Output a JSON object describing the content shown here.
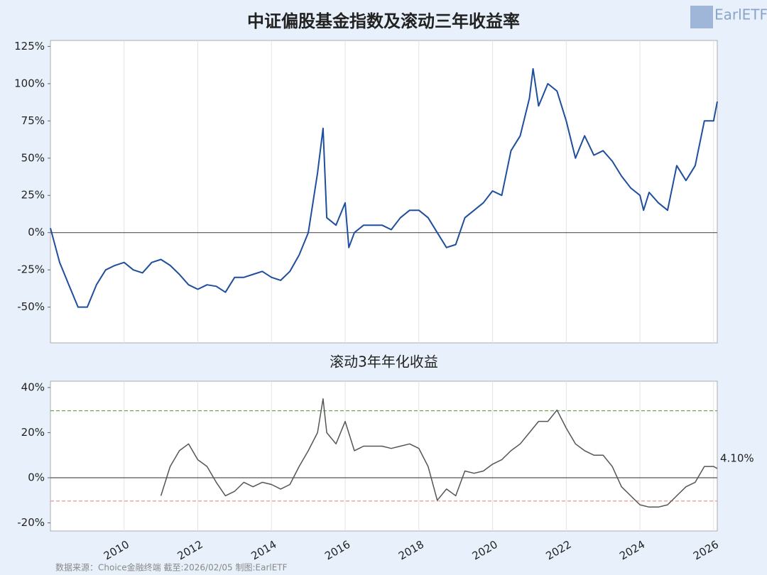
{
  "header": {
    "title": "中证偏股基金指数及滚动三年收益率",
    "logo": "EarlETF"
  },
  "footer": {
    "source": "数据来源：Choice金融终端 截至:2026/02/05 制图:EarlETF"
  },
  "chart_data": [
    {
      "type": "line",
      "xlim": [
        2008,
        2026.1
      ],
      "xticks": [
        2010,
        2012,
        2014,
        2016,
        2018,
        2020,
        2022,
        2024,
        2026
      ],
      "ylim": [
        -74,
        129
      ],
      "yticks": [
        {
          "value": -50,
          "label": "-50%"
        },
        {
          "value": -25,
          "label": "-25%"
        },
        {
          "value": 0,
          "label": "0%"
        },
        {
          "value": 25,
          "label": "25%"
        },
        {
          "value": 50,
          "label": "50%"
        },
        {
          "value": 75,
          "label": "75%"
        },
        {
          "value": 100,
          "label": "100%"
        },
        {
          "value": 125,
          "label": "125%"
        }
      ],
      "x": [
        2008,
        2008.25,
        2008.5,
        2008.75,
        2009,
        2009.25,
        2009.5,
        2009.75,
        2010,
        2010.25,
        2010.5,
        2010.75,
        2011,
        2011.25,
        2011.5,
        2011.75,
        2012,
        2012.25,
        2012.5,
        2012.75,
        2013,
        2013.25,
        2013.5,
        2013.75,
        2014,
        2014.25,
        2014.5,
        2014.75,
        2015,
        2015.25,
        2015.4,
        2015.5,
        2015.75,
        2016,
        2016.1,
        2016.25,
        2016.5,
        2016.75,
        2017,
        2017.25,
        2017.5,
        2017.75,
        2018,
        2018.25,
        2018.5,
        2018.75,
        2019,
        2019.25,
        2019.5,
        2019.75,
        2020,
        2020.25,
        2020.5,
        2020.75,
        2021,
        2021.1,
        2021.25,
        2021.5,
        2021.75,
        2022,
        2022.25,
        2022.5,
        2022.75,
        2023,
        2023.25,
        2023.5,
        2023.75,
        2024,
        2024.1,
        2024.25,
        2024.5,
        2024.75,
        2025,
        2025.25,
        2025.5,
        2025.75,
        2026,
        2026.1
      ],
      "series": [
        {
          "color": "#1f4e9c",
          "values": [
            3,
            -20,
            -35,
            -50,
            -50,
            -35,
            -25,
            -22,
            -20,
            -25,
            -27,
            -20,
            -18,
            -22,
            -28,
            -35,
            -38,
            -35,
            -36,
            -40,
            -30,
            -30,
            -28,
            -26,
            -30,
            -32,
            -26,
            -15,
            0,
            40,
            70,
            10,
            5,
            20,
            -10,
            0,
            5,
            5,
            5,
            2,
            10,
            15,
            15,
            10,
            0,
            -10,
            -8,
            10,
            15,
            20,
            28,
            25,
            55,
            65,
            90,
            110,
            85,
            100,
            95,
            75,
            50,
            65,
            52,
            55,
            48,
            38,
            30,
            25,
            15,
            27,
            20,
            15,
            45,
            35,
            45,
            75,
            75,
            88
          ]
        }
      ]
    },
    {
      "type": "line",
      "title": "滚动3年年化收益",
      "xlim": [
        2008,
        2026.1
      ],
      "xticks": [
        2010,
        2012,
        2014,
        2016,
        2018,
        2020,
        2022,
        2024,
        2026
      ],
      "ylim": [
        -23.6,
        42.8
      ],
      "yticks": [
        {
          "value": -20,
          "label": "-20%"
        },
        {
          "value": 0,
          "label": "0%"
        },
        {
          "value": 20,
          "label": "20%"
        },
        {
          "value": 40,
          "label": "40%"
        }
      ],
      "reference_lines": [
        {
          "value": 29.7,
          "color": "#6aa84f"
        },
        {
          "value": -10.3,
          "color": "#e69a9a"
        }
      ],
      "x": [
        2011,
        2011.25,
        2011.5,
        2011.75,
        2012,
        2012.25,
        2012.5,
        2012.75,
        2013,
        2013.25,
        2013.5,
        2013.75,
        2014,
        2014.25,
        2014.5,
        2014.75,
        2015,
        2015.25,
        2015.4,
        2015.5,
        2015.75,
        2016,
        2016.25,
        2016.5,
        2016.75,
        2017,
        2017.25,
        2017.5,
        2017.75,
        2018,
        2018.25,
        2018.5,
        2018.75,
        2019,
        2019.25,
        2019.5,
        2019.75,
        2020,
        2020.25,
        2020.5,
        2020.75,
        2021,
        2021.25,
        2021.5,
        2021.75,
        2022,
        2022.25,
        2022.5,
        2022.75,
        2023,
        2023.25,
        2023.5,
        2023.75,
        2024,
        2024.25,
        2024.5,
        2024.75,
        2025,
        2025.25,
        2025.5,
        2025.75,
        2026,
        2026.1
      ],
      "series": [
        {
          "color": "#555555",
          "values": [
            -8,
            5,
            12,
            15,
            8,
            5,
            -2,
            -8,
            -6,
            -2,
            -4,
            -2,
            -3,
            -5,
            -3,
            5,
            12,
            20,
            35,
            20,
            15,
            25,
            12,
            14,
            14,
            14,
            13,
            14,
            15,
            13,
            5,
            -10,
            -5,
            -8,
            3,
            2,
            3,
            6,
            8,
            12,
            15,
            20,
            25,
            25,
            30,
            22,
            15,
            12,
            10,
            10,
            5,
            -4,
            -8,
            -12,
            -13,
            -13,
            -12,
            -8,
            -4,
            -2,
            5,
            5,
            4.1
          ],
          "value_labels": [
            null,
            null,
            null,
            null,
            null,
            null,
            null,
            null,
            null,
            null,
            null,
            null,
            null,
            null,
            null,
            null,
            null,
            null,
            null,
            null,
            null,
            null,
            null,
            null,
            null,
            null,
            null,
            null,
            null,
            null,
            null,
            null,
            null,
            null,
            null,
            null,
            null,
            null,
            null,
            null,
            null,
            null,
            null,
            null,
            null,
            null,
            null,
            null,
            null,
            null,
            null,
            null,
            null,
            null,
            null,
            null,
            null,
            null,
            null,
            null,
            null,
            null,
            "4.10%"
          ]
        }
      ]
    }
  ]
}
